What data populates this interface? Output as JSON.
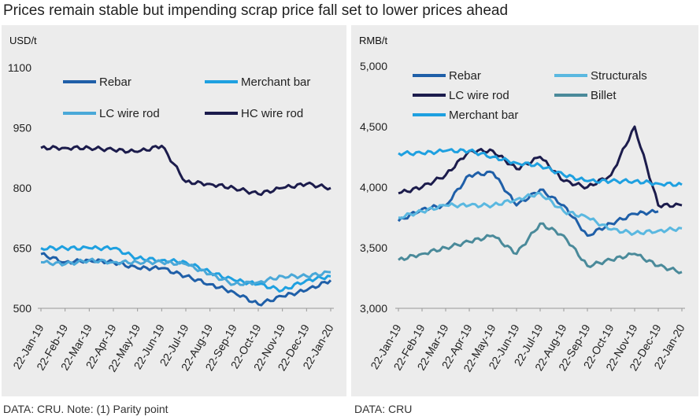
{
  "title": "Prices remain stable but impending scrap price fall set to lower prices ahead",
  "left": {
    "unit": "USD/t",
    "source": "DATA: CRU. Note: (1) Parity point"
  },
  "right": {
    "unit": "RMB/t",
    "source": "DATA: CRU"
  },
  "colors": {
    "rebar": "#1f5fa8",
    "merchant_bar": "#1ea0e0",
    "lc_wire_rod": "#4aa8d8",
    "hc_wire_rod": "#1c1c4c",
    "structurals": "#5ab8e0",
    "billet": "#4a8a9a"
  },
  "chart_data": [
    {
      "type": "line",
      "ylabel": "USD/t",
      "ylim": [
        500,
        1100
      ],
      "yticks": [
        500,
        650,
        800,
        950,
        1100
      ],
      "categories": [
        "22-Jan-19",
        "22-Feb-19",
        "22-Mar-19",
        "22-Apr-19",
        "22-May-19",
        "22-Jun-19",
        "22-Jul-19",
        "22-Aug-19",
        "22-Sep-19",
        "22-Oct-19",
        "22-Nov-19",
        "22-Dec-19",
        "22-Jan-20"
      ],
      "legend_position": "top",
      "series": [
        {
          "name": "Rebar",
          "color_key": "rebar",
          "values": [
            635,
            615,
            620,
            615,
            600,
            600,
            580,
            560,
            540,
            510,
            530,
            545,
            570
          ]
        },
        {
          "name": "Merchant bar",
          "color_key": "merchant_bar",
          "values": [
            650,
            650,
            650,
            650,
            625,
            620,
            615,
            590,
            570,
            560,
            545,
            570,
            580
          ]
        },
        {
          "name": "LC wire rod",
          "color_key": "lc_wire_rod",
          "values": [
            615,
            610,
            620,
            615,
            615,
            615,
            610,
            585,
            560,
            565,
            580,
            580,
            590
          ]
        },
        {
          "name": "HC wire rod",
          "color_key": "hc_wire_rod",
          "values": [
            900,
            900,
            900,
            895,
            890,
            905,
            815,
            810,
            800,
            785,
            800,
            810,
            800
          ]
        }
      ]
    },
    {
      "type": "line",
      "ylabel": "RMB/t",
      "ylim": [
        3000,
        5000
      ],
      "yticks": [
        3000,
        3500,
        4000,
        4500,
        5000
      ],
      "ytick_labels": [
        "3,000",
        "3,500",
        "4,000",
        "4,500",
        "5,000"
      ],
      "categories": [
        "22-Jan-19",
        "22-Feb-19",
        "22-Mar-19",
        "22-Apr-19",
        "22-May-19",
        "22-Jun-19",
        "22-Jul-19",
        "22-Aug-19",
        "22-Sep-19",
        "22-Oct-19",
        "22-Nov-19",
        "22-Dec-19",
        "22-Jan-20"
      ],
      "legend_position": "top",
      "series": [
        {
          "name": "Rebar",
          "color_key": "rebar",
          "values": [
            3720,
            3820,
            3850,
            4100,
            4120,
            3850,
            3980,
            3850,
            3600,
            3700,
            3780,
            3800,
            null
          ]
        },
        {
          "name": "Structurals",
          "color_key": "structurals",
          "values": [
            3750,
            3800,
            3850,
            3850,
            3850,
            3900,
            3950,
            3800,
            3750,
            3650,
            3620,
            3640,
            3660
          ]
        },
        {
          "name": "LC wire rod",
          "color_key": "hc_wire_rod",
          "values": [
            3950,
            4000,
            4100,
            4300,
            4300,
            4150,
            4250,
            4050,
            4000,
            4100,
            4500,
            3850,
            3850
          ]
        },
        {
          "name": "Billet",
          "color_key": "billet",
          "values": [
            3400,
            3450,
            3500,
            3550,
            3600,
            3450,
            3700,
            3600,
            3350,
            3400,
            3450,
            3350,
            3300
          ]
        },
        {
          "name": "Merchant bar",
          "color_key": "merchant_bar",
          "values": [
            4280,
            4280,
            4300,
            4300,
            4250,
            4200,
            4180,
            4100,
            4050,
            4050,
            4050,
            4030,
            4020
          ]
        }
      ]
    }
  ]
}
